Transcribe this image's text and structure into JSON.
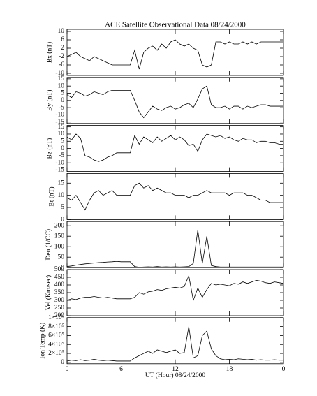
{
  "chart_data": [
    {
      "type": "line",
      "title": "ACE Satellite Observational Data   08/24/2000",
      "ylabel": "Bx (nT)",
      "ylim": [
        -11,
        11
      ],
      "yticks": [
        -10,
        -6,
        -2,
        2,
        6,
        10
      ],
      "series": [
        {
          "color": "#000000",
          "values": [
            -2,
            -1,
            0,
            -2,
            -3,
            -4,
            -2,
            -3,
            -4,
            -5,
            -6,
            -6,
            -6,
            -6,
            -6,
            1,
            -8,
            0,
            2,
            3,
            1,
            4,
            2,
            5,
            6,
            4,
            3,
            4,
            2,
            1,
            -6,
            -7,
            -6,
            5,
            5,
            4,
            5,
            4,
            4,
            5,
            4,
            5,
            4,
            5,
            5,
            5,
            5,
            5,
            5
          ]
        }
      ]
    },
    {
      "type": "line",
      "ylabel": "By (nT)",
      "ylim": [
        -16,
        16
      ],
      "yticks": [
        -15,
        -10,
        -5,
        0,
        5,
        10,
        15
      ],
      "series": [
        {
          "color": "#000000",
          "values": [
            4,
            2,
            6,
            5,
            3,
            4,
            6,
            5,
            4,
            6,
            7,
            7,
            7,
            7,
            7,
            0,
            -8,
            -12,
            -8,
            -4,
            -6,
            -7,
            -5,
            -4,
            -6,
            -5,
            -3,
            -2,
            -5,
            1,
            8,
            10,
            -3,
            -5,
            -5,
            -4,
            -6,
            -4,
            -4,
            -6,
            -4,
            -5,
            -4,
            -3,
            -3,
            -4,
            -4,
            -4,
            -4
          ]
        }
      ]
    },
    {
      "type": "line",
      "ylabel": "Bz (nT)",
      "ylim": [
        -16,
        16
      ],
      "yticks": [
        -15,
        -10,
        -5,
        0,
        5,
        10,
        15
      ],
      "series": [
        {
          "color": "#000000",
          "values": [
            8,
            6,
            10,
            7,
            -5,
            -6,
            -8,
            -9,
            -8,
            -6,
            -5,
            -3,
            -3,
            -3,
            -3,
            9,
            3,
            8,
            6,
            4,
            8,
            5,
            7,
            9,
            6,
            8,
            6,
            2,
            3,
            -2,
            6,
            10,
            9,
            8,
            9,
            7,
            8,
            6,
            5,
            7,
            6,
            6,
            4,
            5,
            5,
            4,
            4,
            3,
            3
          ]
        }
      ]
    },
    {
      "type": "line",
      "ylabel": "Bt (nT)",
      "ylim": [
        0,
        19
      ],
      "yticks": [
        0,
        5,
        10,
        15
      ],
      "series": [
        {
          "color": "#000000",
          "values": [
            9,
            8,
            10,
            7,
            4,
            8,
            11,
            12,
            10,
            11,
            12,
            10,
            10,
            10,
            10,
            14,
            15,
            13,
            14,
            12,
            13,
            12,
            11,
            11,
            10,
            10,
            10,
            9,
            10,
            10,
            11,
            12,
            11,
            11,
            11,
            11,
            10,
            11,
            11,
            11,
            10,
            10,
            9,
            8,
            8,
            7,
            7,
            7,
            7
          ]
        }
      ]
    },
    {
      "type": "line",
      "ylabel": "Den (1/CC)",
      "ylim": [
        0,
        220
      ],
      "yticks": [
        0,
        50,
        100,
        150,
        200
      ],
      "series": [
        {
          "color": "#000000",
          "values": [
            5,
            8,
            12,
            15,
            18,
            20,
            22,
            24,
            25,
            27,
            28,
            30,
            28,
            28,
            28,
            5,
            2,
            3,
            4,
            3,
            5,
            3,
            4,
            3,
            4,
            3,
            4,
            5,
            20,
            180,
            20,
            150,
            10,
            5,
            3,
            3,
            3,
            3,
            3,
            3,
            3,
            3,
            3,
            3,
            3,
            3,
            3,
            3,
            3
          ]
        }
      ]
    },
    {
      "type": "line",
      "ylabel": "Vel (Km/sec)",
      "ylim": [
        200,
        500
      ],
      "yticks": [
        200,
        250,
        300,
        350,
        400,
        450,
        500
      ],
      "series": [
        {
          "color": "#000000",
          "values": [
            300,
            310,
            305,
            315,
            320,
            320,
            325,
            320,
            315,
            320,
            315,
            310,
            310,
            310,
            310,
            320,
            350,
            340,
            355,
            360,
            370,
            365,
            375,
            380,
            385,
            380,
            390,
            460,
            300,
            380,
            320,
            370,
            410,
            400,
            405,
            400,
            395,
            410,
            405,
            420,
            410,
            420,
            430,
            425,
            415,
            410,
            420,
            415,
            410
          ]
        }
      ]
    },
    {
      "type": "line",
      "ylabel": "Ion Temp (K)",
      "ylim": [
        -30000,
        1000000
      ],
      "yticks": [
        0,
        {
          "value": 200000,
          "label": "2×10⁵"
        },
        {
          "value": 400000,
          "label": "4×10⁵"
        },
        {
          "value": 600000,
          "label": "6×10⁵"
        },
        {
          "value": 800000,
          "label": "8×10⁵"
        },
        {
          "value": 1000000,
          "label": "1×10⁶"
        }
      ],
      "xlabel": "UT (Hour)  08/24/2000",
      "xlim": [
        0,
        24
      ],
      "xticks": [
        0,
        6,
        12,
        18,
        {
          "value": 24,
          "label": "0"
        }
      ],
      "x": [
        0,
        0.5,
        1,
        1.5,
        2,
        2.5,
        3,
        3.5,
        4,
        4.5,
        5,
        5.5,
        6,
        6.5,
        7,
        7.5,
        8,
        8.5,
        9,
        9.5,
        10,
        10.5,
        11,
        11.5,
        12,
        12.5,
        13,
        13.5,
        14,
        14.5,
        15,
        15.5,
        16,
        16.5,
        17,
        17.5,
        18,
        18.5,
        19,
        19.5,
        20,
        20.5,
        21,
        21.5,
        22,
        22.5,
        23,
        23.5,
        24
      ],
      "series": [
        {
          "color": "#000000",
          "values": [
            30000,
            50000,
            40000,
            60000,
            40000,
            50000,
            70000,
            50000,
            40000,
            50000,
            40000,
            30000,
            30000,
            30000,
            30000,
            100000,
            150000,
            200000,
            250000,
            200000,
            280000,
            250000,
            220000,
            250000,
            280000,
            200000,
            220000,
            800000,
            100000,
            150000,
            600000,
            700000,
            300000,
            150000,
            80000,
            60000,
            70000,
            60000,
            80000,
            70000,
            60000,
            70000,
            50000,
            60000,
            50000,
            50000,
            60000,
            50000,
            50000
          ]
        }
      ]
    }
  ]
}
